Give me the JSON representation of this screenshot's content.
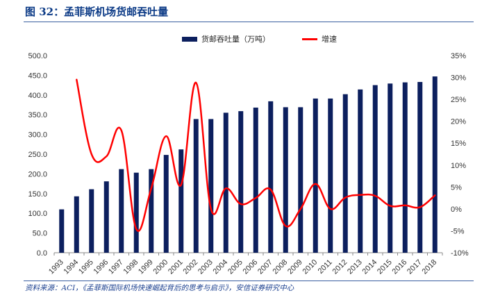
{
  "title": "图 32：孟菲斯机场货邮吞吐量",
  "source": "资料来源：ACI，《孟菲斯国际机场快速崛起背后的思考与启示》，安信证券研究中心",
  "chart_data": {
    "type": "bar+line",
    "categories": [
      "1993",
      "1994",
      "1995",
      "1996",
      "1997",
      "1998",
      "1999",
      "2000",
      "2001",
      "2002",
      "2003",
      "2004",
      "2005",
      "2006",
      "2007",
      "2008",
      "2009",
      "2010",
      "2011",
      "2012",
      "2013",
      "2014",
      "2015",
      "2016",
      "2017",
      "2018"
    ],
    "series": [
      {
        "name": "货邮吞吐量（万吨）",
        "type": "bar",
        "axis": "left",
        "color": "#0c1f5e",
        "values": [
          110,
          143,
          161,
          181,
          212,
          203,
          212,
          248,
          262,
          339,
          339,
          355,
          359,
          368,
          384,
          369,
          369,
          391,
          391,
          402,
          414,
          425,
          429,
          432,
          433,
          447
        ]
      },
      {
        "name": "增速",
        "type": "line",
        "axis": "right",
        "color": "#ff0000",
        "values": [
          null,
          29.5,
          12.5,
          12.0,
          17.9,
          -4.6,
          4.7,
          16.6,
          5.5,
          28.8,
          0.0,
          4.7,
          1.1,
          2.5,
          4.4,
          -3.9,
          0.0,
          5.7,
          0.0,
          2.6,
          3.2,
          3.0,
          0.7,
          0.8,
          0.4,
          3.1
        ]
      }
    ],
    "y_left": {
      "ylim": [
        0,
        500
      ],
      "ticks": [
        "0.0",
        "50.0",
        "100.0",
        "150.0",
        "200.0",
        "250.0",
        "300.0",
        "350.0",
        "400.0",
        "450.0",
        "500.0"
      ]
    },
    "y_right": {
      "ylim": [
        -10,
        35
      ],
      "ticks": [
        "-10%",
        "-5%",
        "0%",
        "5%",
        "10%",
        "15%",
        "20%",
        "25%",
        "30%",
        "35%"
      ]
    },
    "legend_position": "top-center",
    "grid": false
  }
}
